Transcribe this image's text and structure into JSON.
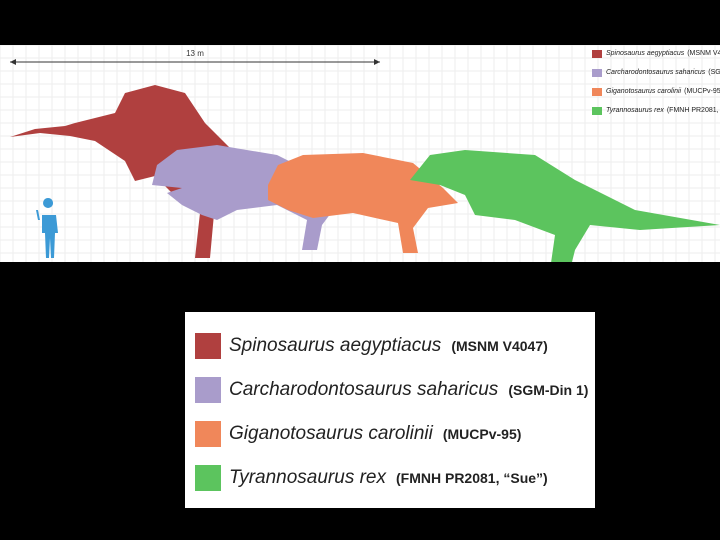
{
  "scale_bar": {
    "label": "13 m"
  },
  "legend": {
    "entries": [
      {
        "name": "Spinosaurus aegyptiacus",
        "specimen": "(MSNM V4047)",
        "color": "#b0403f"
      },
      {
        "name": "Carcharodontosaurus saharicus",
        "specimen": "(SGM-Din 1)",
        "color": "#a99ccb"
      },
      {
        "name": "Giganotosaurus carolinii",
        "specimen": "(MUCPv-95)",
        "color": "#f0875a"
      },
      {
        "name": "Tyrannosaurus rex",
        "specimen": "(FMNH PR2081, “Sue”)",
        "color": "#5cc45e"
      }
    ]
  }
}
